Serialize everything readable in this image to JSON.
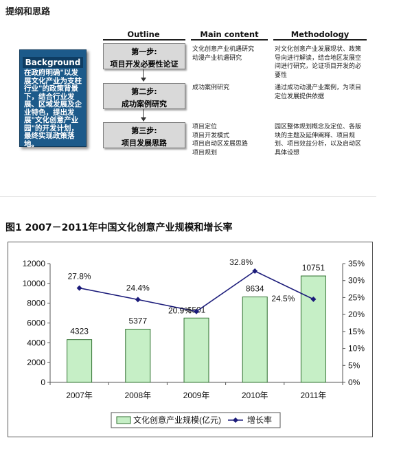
{
  "outline": {
    "title": "提纲和思路",
    "headers": {
      "outline": "Outline",
      "content": "Main content",
      "methodology": "Methodology"
    },
    "background": {
      "title": "Background",
      "text": "在政府明确\"以发展文化产业为支柱行业\"的政策背景下，结合行业发展、区域发展及企业特色，提出发展\"文化创意产业园\"的开发计划，最终实现政策落地。"
    },
    "steps": [
      {
        "step": "第一步:",
        "name": "项目开发必要性论证",
        "content": [
          "文化创意产业机遇研究",
          "动漫产业机遇研究"
        ],
        "method": "对文化创意产业发展现状、政策导向进行解读，结合地区发展空间进行研究，论证项目开发的必要性"
      },
      {
        "step": "第二步:",
        "name": "成功案例研究",
        "content": [
          "成功案例研究"
        ],
        "method": "通过成功动漫产业案例，为项目定位发展提供依据"
      },
      {
        "step": "第三步:",
        "name": "项目发展思路",
        "content": [
          "项目定位",
          "项目开发模式",
          "项目启动区发展思路",
          "项目规划"
        ],
        "method": "园区整体规划概念及定位、各版块的主题及延伸阐释、项目规划、项目效益分析，以及启动区具体设想"
      }
    ]
  },
  "chart_data": {
    "type": "bar",
    "title": "图1   2007－2011年中国文化创意产业规模和增长率",
    "categories": [
      "2007年",
      "2008年",
      "2009年",
      "2010年",
      "2011年"
    ],
    "series": [
      {
        "name": "文化创意产业规模(亿元)",
        "type": "bar",
        "axis": "left",
        "values": [
          4323,
          5377,
          6501,
          8634,
          10751
        ],
        "labels": [
          "4323",
          "5377",
          "6501",
          "8634",
          "10751"
        ]
      },
      {
        "name": "增长率",
        "type": "line",
        "axis": "right",
        "values": [
          27.8,
          24.4,
          20.9,
          32.8,
          24.5
        ],
        "labels": [
          "27.8%",
          "24.4%",
          "20.9%",
          "32.8%",
          "24.5%"
        ]
      }
    ],
    "ylim": [
      0,
      12000
    ],
    "yticks": [
      "0",
      "2000",
      "4000",
      "6000",
      "8000",
      "10000",
      "12000"
    ],
    "y2lim": [
      0,
      35
    ],
    "y2ticks": [
      "0%",
      "5%",
      "10%",
      "15%",
      "20%",
      "25%",
      "30%",
      "35%"
    ],
    "grid": false,
    "legend": "bottom",
    "colors": {
      "bar_fill": "#c6efc6",
      "bar_stroke": "#2f6f2f",
      "line": "#1b1b7a",
      "marker": "#1b1b7a"
    }
  }
}
